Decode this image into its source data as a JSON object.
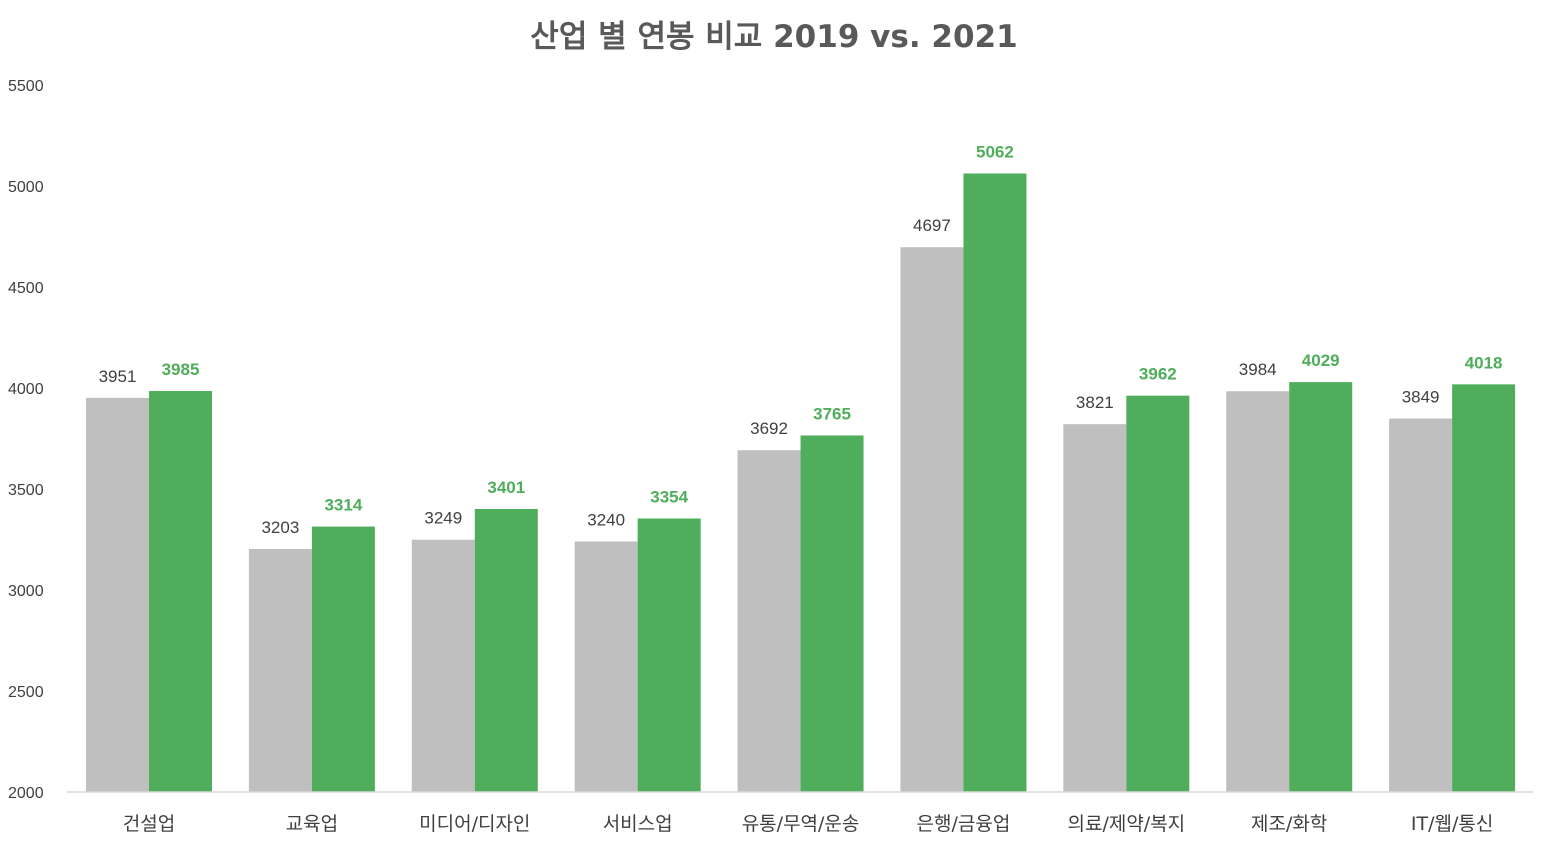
{
  "chart_data": {
    "type": "bar",
    "title": "산업 별 연봉 비교 2019 vs. 2021",
    "xlabel": "",
    "ylabel": "",
    "ylim": [
      2000,
      5500
    ],
    "yticks": [
      "2000",
      "2500",
      "3000",
      "3500",
      "4000",
      "4500",
      "5000",
      "5500"
    ],
    "categories": [
      "건설업",
      "교육업",
      "미디어/디자인",
      "서비스업",
      "유통/무역/운송",
      "은행/금융업",
      "의료/제약/복지",
      "제조/화학",
      "IT/웹/통신"
    ],
    "series": [
      {
        "color": "#bfbfbf",
        "values": [
          3951,
          3203,
          3249,
          3240,
          3692,
          4697,
          3821,
          3984,
          3849
        ]
      },
      {
        "color": "#4fad5b",
        "values": [
          3985,
          3314,
          3401,
          3354,
          3765,
          5062,
          3962,
          4029,
          4018
        ]
      }
    ],
    "grid": false,
    "legend": "none",
    "data_labels": true
  }
}
